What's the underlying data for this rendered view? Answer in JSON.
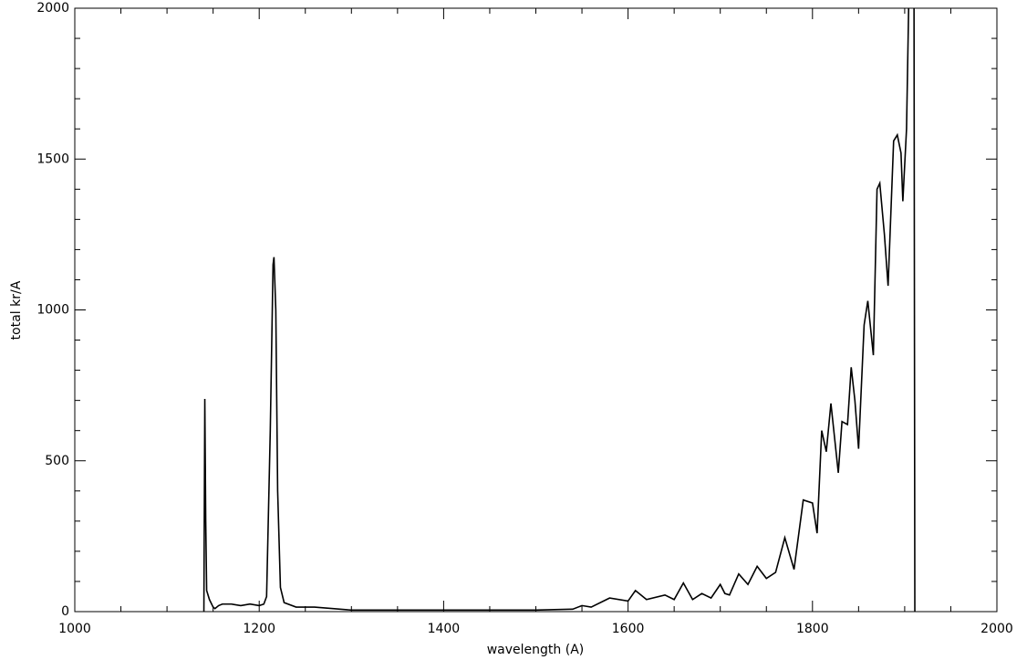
{
  "chart_data": {
    "type": "line",
    "xlabel": "wavelength (A)",
    "ylabel": "total kr/A",
    "xlim": [
      1000,
      2000
    ],
    "ylim": [
      0,
      2000
    ],
    "xticks": [
      1000,
      1200,
      1400,
      1600,
      1800,
      2000
    ],
    "yticks": [
      0,
      500,
      1000,
      1500,
      2000
    ],
    "x_minor_ticks": [
      1050,
      1100,
      1150,
      1250,
      1300,
      1350,
      1450,
      1500,
      1550,
      1650,
      1700,
      1750,
      1850,
      1900,
      1950
    ],
    "y_minor_ticks": [
      100,
      200,
      300,
      400,
      600,
      700,
      800,
      900,
      1100,
      1200,
      1300,
      1400,
      1600,
      1700,
      1800,
      1900
    ],
    "color": "#000000",
    "x": [
      1140,
      1141,
      1142,
      1143,
      1146,
      1150,
      1152,
      1156,
      1160,
      1170,
      1180,
      1190,
      1200,
      1205,
      1208,
      1212,
      1215,
      1216,
      1218,
      1220,
      1223,
      1227,
      1240,
      1260,
      1280,
      1300,
      1350,
      1400,
      1450,
      1500,
      1540,
      1550,
      1560,
      1580,
      1600,
      1608,
      1620,
      1640,
      1650,
      1660,
      1670,
      1680,
      1690,
      1700,
      1705,
      1710,
      1720,
      1730,
      1740,
      1750,
      1760,
      1770,
      1780,
      1790,
      1800,
      1805,
      1810,
      1815,
      1820,
      1828,
      1832,
      1838,
      1842,
      1846,
      1850,
      1856,
      1860,
      1866,
      1870,
      1873,
      1878,
      1882,
      1888,
      1892,
      1896,
      1898,
      1902,
      1906,
      1910,
      1911
    ],
    "values": [
      0,
      705,
      300,
      70,
      40,
      15,
      10,
      20,
      25,
      25,
      20,
      25,
      20,
      25,
      50,
      600,
      1150,
      1175,
      1000,
      400,
      80,
      30,
      15,
      15,
      10,
      5,
      5,
      5,
      5,
      5,
      8,
      20,
      15,
      45,
      35,
      70,
      40,
      55,
      40,
      95,
      40,
      60,
      45,
      90,
      60,
      55,
      125,
      90,
      150,
      110,
      130,
      245,
      140,
      370,
      360,
      260,
      600,
      530,
      690,
      460,
      630,
      620,
      810,
      700,
      540,
      950,
      1030,
      850,
      1400,
      1420,
      1250,
      1080,
      1560,
      1580,
      1520,
      1360,
      1600,
      2300,
      2300,
      0
    ]
  }
}
